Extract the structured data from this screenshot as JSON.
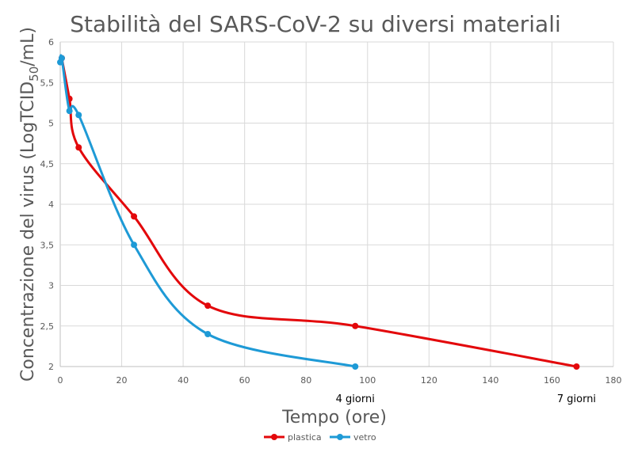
{
  "chart_data": {
    "type": "line",
    "title": "Stabilità del SARS-CoV-2 su diversi materiali",
    "xlabel": "Tempo (ore)",
    "ylabel_main": "Concentrazione del virus (LogTCID",
    "ylabel_sub": "50",
    "ylabel_end": "/mL)",
    "xlim": [
      0,
      180
    ],
    "ylim": [
      2,
      6
    ],
    "x_ticks": [
      {
        "value": 0,
        "label": "0"
      },
      {
        "value": 20,
        "label": "20"
      },
      {
        "value": 40,
        "label": "40"
      },
      {
        "value": 60,
        "label": "60"
      },
      {
        "value": 80,
        "label": "80"
      },
      {
        "value": 100,
        "label": "100"
      },
      {
        "value": 120,
        "label": "120"
      },
      {
        "value": 140,
        "label": "140"
      },
      {
        "value": 160,
        "label": "160"
      },
      {
        "value": 180,
        "label": "180"
      }
    ],
    "y_ticks": [
      {
        "value": 2,
        "label": "2"
      },
      {
        "value": 2.5,
        "label": "2,5"
      },
      {
        "value": 3,
        "label": "3"
      },
      {
        "value": 3.5,
        "label": "3,5"
      },
      {
        "value": 4,
        "label": "4"
      },
      {
        "value": 4.5,
        "label": "4,5"
      },
      {
        "value": 5,
        "label": "5"
      },
      {
        "value": 5.5,
        "label": "5,5"
      },
      {
        "value": 6,
        "label": "6"
      }
    ],
    "annotations": [
      {
        "x": 96,
        "label": "4 giorni"
      },
      {
        "x": 168,
        "label": "7 giorni"
      }
    ],
    "grid": true,
    "legend_position": "bottom",
    "smooth": true,
    "series": [
      {
        "name": "plastica",
        "color": "#e3080b",
        "points": [
          [
            0.5,
            5.8
          ],
          [
            3,
            5.3
          ],
          [
            6,
            4.7
          ],
          [
            24,
            3.85
          ],
          [
            48,
            2.75
          ],
          [
            96,
            2.5
          ],
          [
            168,
            2.0
          ]
        ]
      },
      {
        "name": "vetro",
        "color": "#1e9ad6",
        "points": [
          [
            0,
            5.75
          ],
          [
            0.5,
            5.8
          ],
          [
            3,
            5.15
          ],
          [
            6,
            5.1
          ],
          [
            24,
            3.5
          ],
          [
            48,
            2.4
          ],
          [
            96,
            2.0
          ]
        ]
      }
    ]
  }
}
